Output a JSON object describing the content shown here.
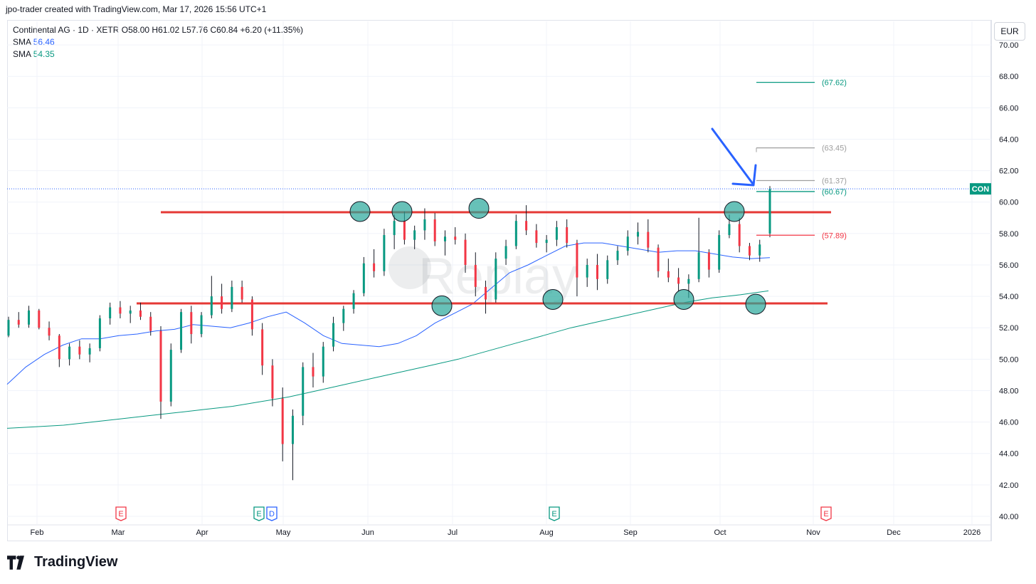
{
  "header": {
    "created_by": "jpo-trader created with TradingView.com, Mar 17, 2026 15:56 UTC+1"
  },
  "legend": {
    "title": "Continental AG · 1D · XETR",
    "ohlc": "O58.00  H61.02  L57.76  C60.84  +6.20 (+11.35%)",
    "sma1_label": "SMA",
    "sma1_value": "56.46",
    "sma2_label": "SMA",
    "sma2_value": "54.35"
  },
  "currency": "EUR",
  "ticker_tag": "CON",
  "footer": {
    "brand": "TradingView"
  },
  "chart_data": {
    "type": "candlestick",
    "ylim": [
      39.5,
      71.5
    ],
    "y_ticks": [
      "70.00",
      "68.00",
      "66.00",
      "64.00",
      "62.00",
      "60.00",
      "58.00",
      "56.00",
      "54.00",
      "52.00",
      "50.00",
      "48.00",
      "46.00",
      "44.00",
      "42.00",
      "40.00"
    ],
    "x_ticks": [
      "Feb",
      "Mar",
      "Apr",
      "May",
      "Jun",
      "Jul",
      "Aug",
      "Sep",
      "Oct",
      "Nov",
      "Dec",
      "2026"
    ],
    "last_price": 60.84,
    "sma_fast": {
      "label": "SMA",
      "value": 56.46,
      "color": "#2962ff",
      "values": [
        48.4,
        49.5,
        50.3,
        50.9,
        51.3,
        51.3,
        51.5,
        51.6,
        51.8,
        51.9,
        52.2,
        52.1,
        52.0,
        52.3,
        52.7,
        53.0,
        52.3,
        51.5,
        51.0,
        50.9,
        50.8,
        51.0,
        51.5,
        52.3,
        52.9,
        53.5,
        54.5,
        55.5,
        56.0,
        56.6,
        57.2,
        57.4,
        57.4,
        57.2,
        57.0,
        56.8,
        56.9,
        56.9,
        56.7,
        56.5,
        56.4,
        56.46
      ]
    },
    "sma_slow": {
      "label": "SMA",
      "value": 54.35,
      "color": "#089981",
      "values": [
        45.6,
        45.7,
        45.8,
        46.0,
        46.2,
        46.4,
        46.6,
        46.8,
        47.0,
        47.3,
        47.6,
        48.0,
        48.4,
        48.8,
        49.2,
        49.6,
        50.0,
        50.5,
        51.0,
        51.5,
        52.0,
        52.4,
        52.8,
        53.2,
        53.6,
        53.9,
        54.1,
        54.35
      ]
    },
    "candles": [
      [
        51.5,
        52.7,
        51.4,
        52.5
      ],
      [
        52.5,
        53.0,
        52.0,
        52.2
      ],
      [
        52.2,
        53.4,
        52.0,
        53.1
      ],
      [
        53.1,
        53.2,
        51.9,
        52.0
      ],
      [
        52.0,
        52.4,
        51.2,
        51.5
      ],
      [
        51.5,
        51.6,
        49.5,
        50.0
      ],
      [
        50.0,
        51.0,
        49.6,
        50.8
      ],
      [
        50.8,
        51.2,
        50.0,
        50.3
      ],
      [
        50.3,
        51.0,
        49.8,
        50.7
      ],
      [
        50.7,
        52.8,
        50.5,
        52.6
      ],
      [
        52.6,
        53.6,
        52.2,
        53.3
      ],
      [
        53.3,
        53.7,
        52.6,
        52.9
      ],
      [
        52.9,
        53.4,
        52.3,
        53.1
      ],
      [
        53.1,
        53.6,
        52.5,
        52.7
      ],
      [
        52.7,
        53.0,
        51.5,
        51.8
      ],
      [
        51.8,
        52.1,
        46.2,
        47.3
      ],
      [
        47.3,
        51.0,
        47.0,
        50.6
      ],
      [
        50.6,
        53.2,
        50.4,
        53.0
      ],
      [
        53.0,
        53.4,
        51.0,
        51.6
      ],
      [
        51.6,
        53.0,
        51.4,
        52.8
      ],
      [
        52.8,
        55.3,
        52.6,
        54.0
      ],
      [
        54.0,
        54.8,
        52.9,
        53.2
      ],
      [
        53.2,
        55.0,
        53.0,
        54.6
      ],
      [
        54.6,
        55.0,
        53.6,
        53.8
      ],
      [
        53.8,
        54.0,
        51.5,
        51.9
      ],
      [
        51.9,
        52.3,
        49.0,
        49.6
      ],
      [
        49.6,
        50.0,
        47.0,
        47.5
      ],
      [
        47.5,
        48.2,
        43.5,
        44.6
      ],
      [
        44.6,
        46.8,
        42.3,
        46.4
      ],
      [
        46.4,
        49.8,
        45.8,
        49.5
      ],
      [
        49.5,
        50.4,
        48.2,
        48.9
      ],
      [
        48.9,
        51.1,
        48.5,
        50.8
      ],
      [
        50.8,
        52.7,
        50.5,
        52.3
      ],
      [
        52.3,
        53.4,
        51.8,
        53.2
      ],
      [
        53.2,
        54.4,
        52.9,
        54.2
      ],
      [
        54.2,
        56.5,
        54.0,
        56.1
      ],
      [
        56.1,
        57.0,
        55.2,
        55.6
      ],
      [
        55.6,
        58.3,
        55.3,
        57.9
      ],
      [
        57.9,
        59.2,
        57.0,
        58.8
      ],
      [
        58.8,
        59.4,
        57.3,
        57.6
      ],
      [
        57.6,
        58.5,
        57.0,
        58.2
      ],
      [
        58.2,
        59.6,
        57.6,
        58.9
      ],
      [
        58.9,
        59.3,
        57.2,
        57.5
      ],
      [
        57.5,
        58.2,
        56.6,
        57.8
      ],
      [
        57.8,
        58.4,
        57.3,
        57.6
      ],
      [
        57.6,
        58.0,
        55.5,
        56.0
      ],
      [
        56.0,
        56.8,
        54.0,
        54.6
      ],
      [
        54.6,
        55.0,
        52.9,
        53.8
      ],
      [
        53.8,
        56.8,
        53.6,
        56.4
      ],
      [
        56.4,
        57.6,
        56.0,
        57.2
      ],
      [
        57.2,
        59.2,
        57.0,
        58.8
      ],
      [
        58.8,
        59.8,
        57.9,
        58.2
      ],
      [
        58.2,
        58.6,
        57.1,
        57.4
      ],
      [
        57.4,
        57.9,
        56.8,
        57.6
      ],
      [
        57.6,
        58.8,
        57.2,
        58.4
      ],
      [
        58.4,
        58.9,
        57.1,
        57.4
      ],
      [
        57.4,
        57.6,
        54.0,
        55.2
      ],
      [
        55.2,
        56.4,
        54.6,
        56.0
      ],
      [
        56.0,
        56.7,
        54.4,
        55.1
      ],
      [
        55.1,
        56.6,
        54.8,
        56.3
      ],
      [
        56.3,
        57.2,
        56.0,
        56.9
      ],
      [
        56.9,
        58.2,
        56.6,
        57.8
      ],
      [
        57.8,
        58.7,
        57.3,
        58.1
      ],
      [
        58.1,
        58.9,
        56.8,
        57.1
      ],
      [
        57.1,
        57.3,
        55.2,
        55.6
      ],
      [
        55.6,
        56.4,
        54.9,
        55.2
      ],
      [
        55.2,
        55.8,
        54.3,
        54.8
      ],
      [
        54.8,
        55.4,
        53.9,
        55.1
      ],
      [
        55.1,
        59.0,
        54.9,
        56.8
      ],
      [
        56.8,
        57.0,
        55.2,
        55.7
      ],
      [
        55.7,
        58.2,
        55.5,
        57.9
      ],
      [
        57.9,
        59.2,
        57.7,
        58.6
      ],
      [
        58.6,
        59.0,
        56.8,
        57.2
      ],
      [
        57.2,
        57.4,
        56.3,
        56.6
      ],
      [
        56.6,
        57.6,
        56.2,
        57.3
      ],
      [
        58.0,
        61.02,
        57.76,
        60.84
      ]
    ],
    "support_line": 53.55,
    "resistance_line": 59.35,
    "levels": [
      {
        "value": 67.62,
        "label": "(67.62)",
        "color": "#089981"
      },
      {
        "value": 63.45,
        "label": "(63.45)",
        "color": "#9e9e9e"
      },
      {
        "value": 61.37,
        "label": "(61.37)",
        "color": "#9e9e9e"
      },
      {
        "value": 60.67,
        "label": "(60.67)",
        "color": "#089981"
      },
      {
        "value": 57.89,
        "label": "(57.89)",
        "color": "#f23645"
      }
    ],
    "events": [
      {
        "label": "E",
        "color": "#f23645"
      },
      {
        "label": "E",
        "color": "#089981"
      },
      {
        "label": "D",
        "color": "#2962ff"
      },
      {
        "label": "E",
        "color": "#089981"
      },
      {
        "label": "E",
        "color": "#f23645"
      }
    ],
    "watermark": "Replay",
    "colors": {
      "up": "#089981",
      "down": "#f23645",
      "wick": "#131722",
      "line_red": "#e53935",
      "arrow": "#2962ff",
      "circle": "#26a69a"
    }
  }
}
